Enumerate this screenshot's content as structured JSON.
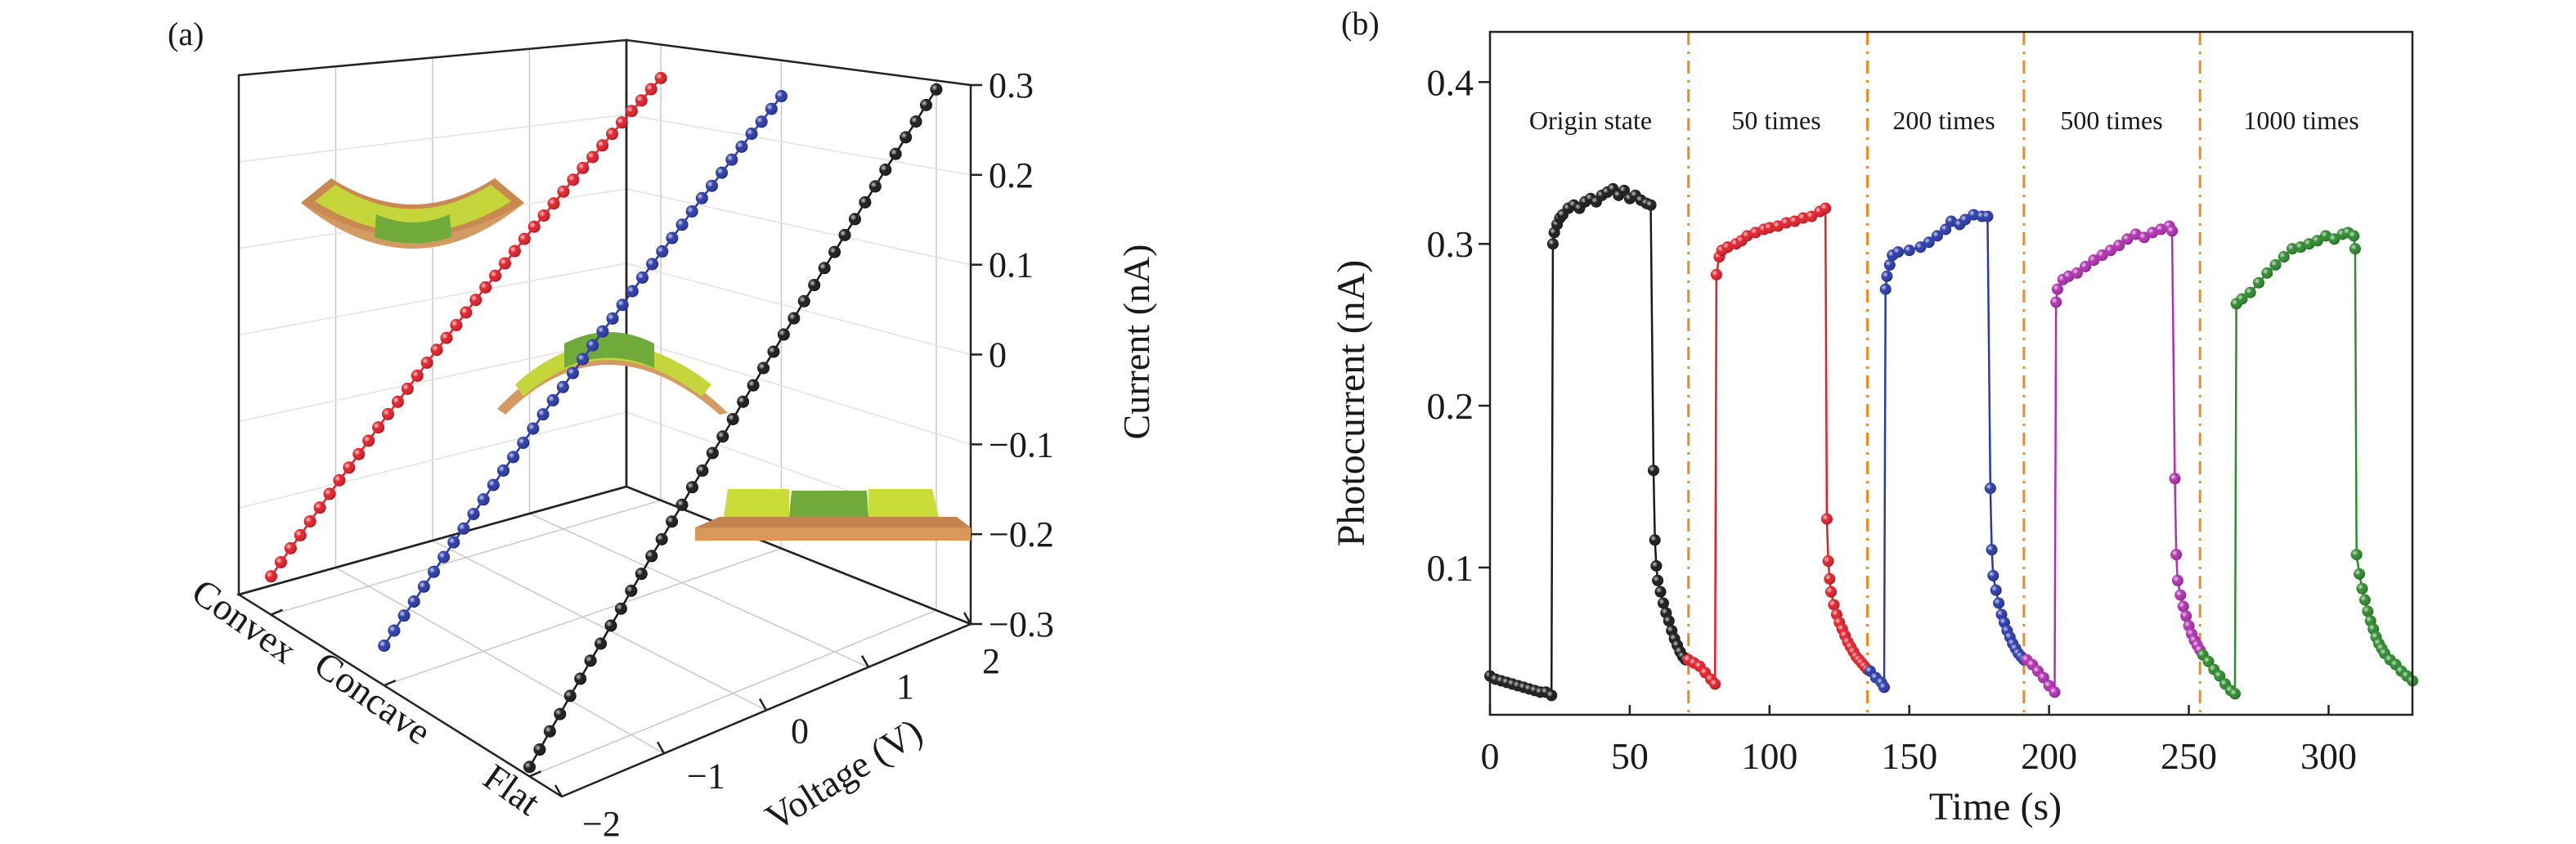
{
  "panels": [
    {
      "label": "(a)"
    },
    {
      "label": "(b)"
    }
  ],
  "chart_data": [
    {
      "type": "line",
      "subtype": "3d-waterfall",
      "xlabel": "Voltage (V)",
      "ylabel": "Current (nA)",
      "zlabel": "",
      "xlim": [
        -2,
        2
      ],
      "ylim": [
        -0.3,
        0.3
      ],
      "x_ticks": [
        "−2",
        "−1",
        "0",
        "1",
        "2"
      ],
      "y_ticks": [
        "0.3",
        "0.2",
        "0.1",
        "0",
        "−0.1",
        "−0.2",
        "−0.3"
      ],
      "categories": [
        "Convex",
        "Concave",
        "Flat"
      ],
      "grid": true,
      "x": [
        -2,
        -1.9,
        -1.8,
        -1.7,
        -1.6,
        -1.5,
        -1.4,
        -1.3,
        -1.2,
        -1.1,
        -1,
        -0.9,
        -0.8,
        -0.7,
        -0.6,
        -0.5,
        -0.4,
        -0.3,
        -0.2,
        -0.1,
        0,
        0.1,
        0.2,
        0.3,
        0.4,
        0.5,
        0.6,
        0.7,
        0.8,
        0.9,
        1,
        1.1,
        1.2,
        1.3,
        1.4,
        1.5,
        1.6,
        1.7,
        1.8,
        1.9,
        2
      ],
      "series": [
        {
          "category": "Convex",
          "color": "#e0202a",
          "values": [
            -0.256,
            -0.243,
            -0.23,
            -0.218,
            -0.205,
            -0.192,
            -0.179,
            -0.166,
            -0.154,
            -0.141,
            -0.128,
            -0.115,
            -0.102,
            -0.09,
            -0.077,
            -0.064,
            -0.051,
            -0.038,
            -0.026,
            -0.013,
            0,
            0.013,
            0.026,
            0.038,
            0.051,
            0.064,
            0.077,
            0.09,
            0.102,
            0.115,
            0.128,
            0.141,
            0.154,
            0.166,
            0.179,
            0.192,
            0.205,
            0.218,
            0.23,
            0.243,
            0.256
          ]
        },
        {
          "category": "Concave",
          "color": "#2a3aa8",
          "values": [
            -0.256,
            -0.243,
            -0.23,
            -0.218,
            -0.205,
            -0.192,
            -0.179,
            -0.166,
            -0.154,
            -0.141,
            -0.128,
            -0.115,
            -0.102,
            -0.09,
            -0.077,
            -0.064,
            -0.051,
            -0.038,
            -0.026,
            -0.013,
            0,
            0.013,
            0.026,
            0.038,
            0.051,
            0.064,
            0.077,
            0.09,
            0.102,
            0.115,
            0.128,
            0.141,
            0.154,
            0.166,
            0.179,
            0.192,
            0.205,
            0.218,
            0.23,
            0.243,
            0.256
          ]
        },
        {
          "category": "Flat",
          "color": "#1a1a1a",
          "values": [
            -0.29,
            -0.276,
            -0.261,
            -0.247,
            -0.232,
            -0.218,
            -0.203,
            -0.189,
            -0.174,
            -0.16,
            -0.145,
            -0.131,
            -0.116,
            -0.102,
            -0.087,
            -0.073,
            -0.058,
            -0.044,
            -0.029,
            -0.015,
            0,
            0.015,
            0.029,
            0.044,
            0.058,
            0.073,
            0.087,
            0.102,
            0.116,
            0.131,
            0.145,
            0.16,
            0.174,
            0.189,
            0.203,
            0.218,
            0.232,
            0.247,
            0.261,
            0.276,
            0.29
          ]
        }
      ],
      "insets": [
        "concave-device",
        "convex-device",
        "flat-device"
      ]
    },
    {
      "type": "line",
      "xlabel": "Time (s)",
      "ylabel": "Photocurrent (nA)",
      "xlim": [
        0,
        330
      ],
      "ylim": [
        0.009,
        0.431
      ],
      "x_ticks": [
        "0",
        "50",
        "100",
        "150",
        "200",
        "250",
        "300"
      ],
      "y_ticks": [
        "0.1",
        "0.2",
        "0.3",
        "0.4"
      ],
      "grid": false,
      "divider_color": "#f08a20",
      "dividers": [
        71,
        135,
        191,
        254
      ],
      "annotations": [
        "Origin state",
        "50 times",
        "200 times",
        "500 times",
        "1000 times"
      ],
      "series": [
        {
          "color": "#1a1a1a",
          "points": [
            [
              0,
              0.033
            ],
            [
              2,
              0.031
            ],
            [
              4,
              0.03
            ],
            [
              6,
              0.029
            ],
            [
              8,
              0.028
            ],
            [
              10,
              0.027
            ],
            [
              12,
              0.026
            ],
            [
              14,
              0.025
            ],
            [
              16,
              0.024
            ],
            [
              18,
              0.023
            ],
            [
              20,
              0.023
            ],
            [
              22,
              0.021
            ],
            [
              22.5,
              0.3
            ],
            [
              23,
              0.307
            ],
            [
              24,
              0.312
            ],
            [
              25,
              0.316
            ],
            [
              26,
              0.318
            ],
            [
              28,
              0.322
            ],
            [
              30,
              0.324
            ],
            [
              32,
              0.322
            ],
            [
              34,
              0.326
            ],
            [
              36,
              0.328
            ],
            [
              38,
              0.326
            ],
            [
              40,
              0.33
            ],
            [
              42,
              0.332
            ],
            [
              44,
              0.334
            ],
            [
              46,
              0.33
            ],
            [
              48,
              0.333
            ],
            [
              50,
              0.328
            ],
            [
              52,
              0.33
            ],
            [
              54,
              0.327
            ],
            [
              56,
              0.325
            ],
            [
              57.5,
              0.324
            ],
            [
              58.5,
              0.16
            ],
            [
              59,
              0.117
            ],
            [
              59.5,
              0.101
            ],
            [
              60,
              0.092
            ],
            [
              61,
              0.085
            ],
            [
              62,
              0.078
            ],
            [
              63,
              0.072
            ],
            [
              64,
              0.067
            ],
            [
              65,
              0.061
            ],
            [
              66,
              0.056
            ],
            [
              67,
              0.052
            ],
            [
              68,
              0.048
            ],
            [
              69,
              0.045
            ],
            [
              70,
              0.043
            ]
          ]
        },
        {
          "color": "#e0202a",
          "points": [
            [
              71,
              0.043
            ],
            [
              73,
              0.041
            ],
            [
              75,
              0.039
            ],
            [
              77,
              0.035
            ],
            [
              79,
              0.031
            ],
            [
              80.5,
              0.028
            ],
            [
              81,
              0.281
            ],
            [
              82,
              0.292
            ],
            [
              83,
              0.296
            ],
            [
              85,
              0.298
            ],
            [
              88,
              0.3
            ],
            [
              90,
              0.302
            ],
            [
              92,
              0.305
            ],
            [
              95,
              0.307
            ],
            [
              98,
              0.309
            ],
            [
              100,
              0.31
            ],
            [
              103,
              0.311
            ],
            [
              106,
              0.313
            ],
            [
              109,
              0.314
            ],
            [
              112,
              0.316
            ],
            [
              115,
              0.317
            ],
            [
              118,
              0.32
            ],
            [
              120,
              0.322
            ],
            [
              120.5,
              0.13
            ],
            [
              121,
              0.104
            ],
            [
              121.5,
              0.093
            ],
            [
              122,
              0.085
            ],
            [
              123,
              0.077
            ],
            [
              124,
              0.071
            ],
            [
              125,
              0.066
            ],
            [
              126,
              0.062
            ],
            [
              127,
              0.058
            ],
            [
              128,
              0.054
            ],
            [
              129,
              0.051
            ],
            [
              130,
              0.048
            ],
            [
              131,
              0.045
            ],
            [
              132,
              0.043
            ],
            [
              133,
              0.041
            ],
            [
              134,
              0.039
            ],
            [
              135,
              0.037
            ]
          ]
        },
        {
          "color": "#2a3aa8",
          "points": [
            [
              136,
              0.036
            ],
            [
              138,
              0.032
            ],
            [
              140,
              0.029
            ],
            [
              141,
              0.026
            ],
            [
              141.5,
              0.272
            ],
            [
              142,
              0.28
            ],
            [
              143,
              0.287
            ],
            [
              144,
              0.293
            ],
            [
              146,
              0.295
            ],
            [
              150,
              0.296
            ],
            [
              154,
              0.298
            ],
            [
              157,
              0.301
            ],
            [
              160,
              0.305
            ],
            [
              163,
              0.309
            ],
            [
              165,
              0.314
            ],
            [
              168,
              0.312
            ],
            [
              170,
              0.315
            ],
            [
              173,
              0.318
            ],
            [
              176,
              0.317
            ],
            [
              178,
              0.317
            ],
            [
              179,
              0.149
            ],
            [
              179.5,
              0.111
            ],
            [
              180,
              0.095
            ],
            [
              181,
              0.086
            ],
            [
              182,
              0.078
            ],
            [
              183,
              0.071
            ],
            [
              184,
              0.066
            ],
            [
              185,
              0.061
            ],
            [
              186,
              0.057
            ],
            [
              187,
              0.053
            ],
            [
              188,
              0.05
            ],
            [
              189,
              0.047
            ],
            [
              190,
              0.045
            ],
            [
              191,
              0.043
            ]
          ]
        },
        {
          "color": "#b030b0",
          "points": [
            [
              192,
              0.043
            ],
            [
              194,
              0.04
            ],
            [
              196,
              0.036
            ],
            [
              198,
              0.032
            ],
            [
              200,
              0.027
            ],
            [
              202,
              0.023
            ],
            [
              202.5,
              0.264
            ],
            [
              203,
              0.272
            ],
            [
              205,
              0.278
            ],
            [
              207,
              0.28
            ],
            [
              210,
              0.282
            ],
            [
              213,
              0.286
            ],
            [
              216,
              0.29
            ],
            [
              219,
              0.293
            ],
            [
              222,
              0.296
            ],
            [
              225,
              0.299
            ],
            [
              228,
              0.303
            ],
            [
              231,
              0.306
            ],
            [
              234,
              0.304
            ],
            [
              237,
              0.307
            ],
            [
              240,
              0.309
            ],
            [
              243,
              0.311
            ],
            [
              244,
              0.308
            ],
            [
              245,
              0.155
            ],
            [
              245.5,
              0.108
            ],
            [
              246,
              0.092
            ],
            [
              247,
              0.083
            ],
            [
              248,
              0.076
            ],
            [
              249,
              0.07
            ],
            [
              250,
              0.064
            ],
            [
              251,
              0.059
            ],
            [
              252,
              0.055
            ],
            [
              253,
              0.052
            ],
            [
              254,
              0.049
            ]
          ]
        },
        {
          "color": "#2e8a2e",
          "points": [
            [
              255,
              0.046
            ],
            [
              257,
              0.042
            ],
            [
              259,
              0.037
            ],
            [
              261,
              0.033
            ],
            [
              263,
              0.028
            ],
            [
              265,
              0.024
            ],
            [
              266.5,
              0.022
            ],
            [
              267,
              0.263
            ],
            [
              269,
              0.266
            ],
            [
              272,
              0.27
            ],
            [
              275,
              0.276
            ],
            [
              278,
              0.282
            ],
            [
              281,
              0.287
            ],
            [
              284,
              0.292
            ],
            [
              287,
              0.297
            ],
            [
              290,
              0.298
            ],
            [
              293,
              0.3
            ],
            [
              296,
              0.302
            ],
            [
              299,
              0.305
            ],
            [
              302,
              0.303
            ],
            [
              305,
              0.306
            ],
            [
              307,
              0.307
            ],
            [
              309,
              0.305
            ],
            [
              309.5,
              0.297
            ],
            [
              310,
              0.108
            ],
            [
              311,
              0.096
            ],
            [
              312,
              0.087
            ],
            [
              313,
              0.08
            ],
            [
              314,
              0.073
            ],
            [
              315,
              0.067
            ],
            [
              316,
              0.062
            ],
            [
              317,
              0.057
            ],
            [
              318,
              0.053
            ],
            [
              319,
              0.05
            ],
            [
              320,
              0.047
            ],
            [
              322,
              0.043
            ],
            [
              324,
              0.04
            ],
            [
              326,
              0.036
            ],
            [
              328,
              0.033
            ],
            [
              330,
              0.03
            ]
          ]
        }
      ]
    }
  ]
}
